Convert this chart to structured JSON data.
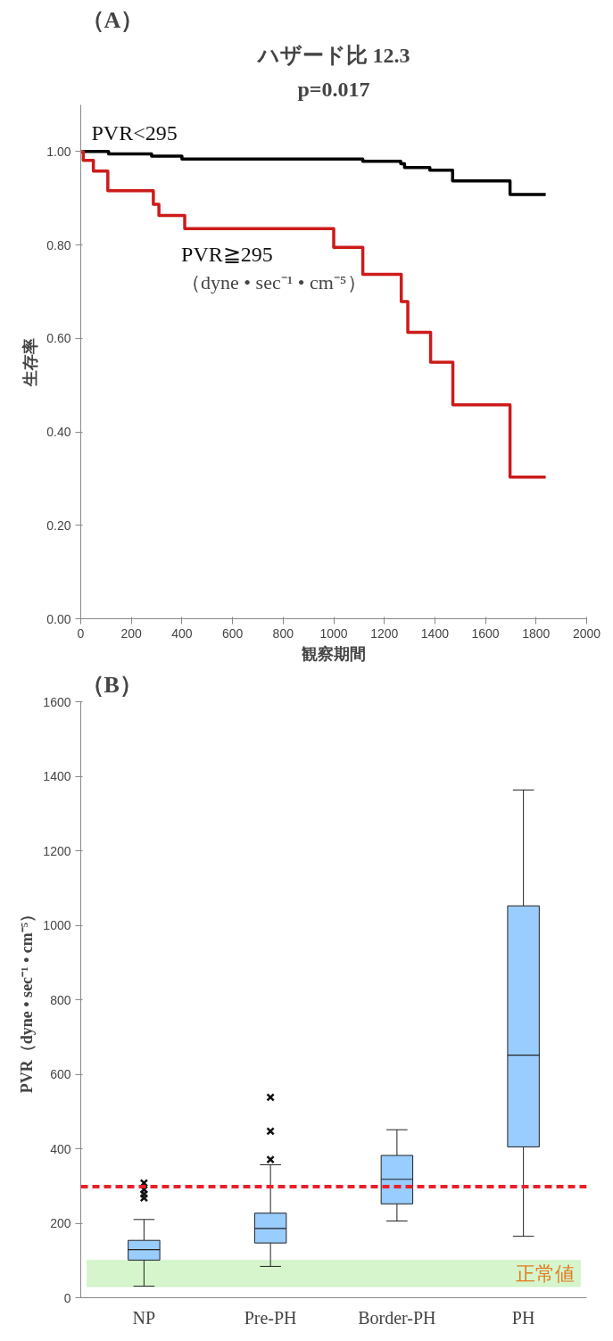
{
  "chart_data": [
    {
      "type": "step",
      "title": "（A）",
      "xlabel": "観察期間",
      "ylabel": "生存率",
      "annotations": [
        "ハザード比 12.3",
        "p=0.017",
        "（dyne • sec⁻¹ • cm⁻⁵）"
      ],
      "series": [
        {
          "name": "PVR<295",
          "color": "#000000",
          "x": [
            0,
            110,
            280,
            400,
            1115,
            1265,
            1280,
            1380,
            1470,
            1697,
            1838
          ],
          "values": [
            1.0,
            0.995,
            0.99,
            0.984,
            0.979,
            0.974,
            0.966,
            0.96,
            0.937,
            0.908,
            0.908
          ]
        },
        {
          "name": "PVR≧295",
          "color": "#cc1b1b",
          "x": [
            0,
            10,
            50,
            107,
            287,
            309,
            411,
            1000,
            1115,
            1267,
            1293,
            1383,
            1471,
            1697,
            1838
          ],
          "values": [
            1.0,
            0.981,
            0.958,
            0.916,
            0.887,
            0.863,
            0.835,
            0.795,
            0.737,
            0.679,
            0.613,
            0.549,
            0.458,
            0.303,
            0.303
          ]
        }
      ],
      "xlim": [
        0,
        2000
      ],
      "xticks": [
        0,
        200,
        400,
        600,
        800,
        1000,
        1200,
        1400,
        1600,
        1800,
        2000
      ],
      "ylim": [
        0,
        1.1
      ],
      "yticks": [
        {
          "value": 0,
          "label": "0.00"
        },
        {
          "value": 0.2,
          "label": "0.20"
        },
        {
          "value": 0.4,
          "label": "0.40"
        },
        {
          "value": 0.6,
          "label": "0.60"
        },
        {
          "value": 0.8,
          "label": "0.80"
        },
        {
          "value": 1.0,
          "label": "1.00"
        }
      ],
      "line_style": "solid",
      "marker": "none",
      "grid": false
    },
    {
      "type": "box",
      "title": "（B）",
      "ylabel": "PVR（dyne • sec⁻¹ • cm⁻⁵）",
      "categories": [
        "NP",
        "Pre-PH",
        "Border-PH",
        "PH"
      ],
      "series": [
        {
          "color": "#99ccff",
          "boxes": [
            {
              "low": 31,
              "q1": 101,
              "median": 129,
              "q3": 154,
              "high": 210,
              "outliers": [
                268,
                278,
                290,
                308
              ]
            },
            {
              "low": 84,
              "q1": 147,
              "median": 186,
              "q3": 227,
              "high": 357,
              "outliers": [
                371,
                447,
                538
              ]
            },
            {
              "low": 206,
              "q1": 252,
              "median": 318,
              "q3": 382,
              "high": 451
            },
            {
              "low": 165,
              "q1": 405,
              "median": 651,
              "q3": 1052,
              "high": 1363
            }
          ]
        }
      ],
      "ylim": [
        0,
        1600
      ],
      "yticks": [
        0,
        200,
        400,
        600,
        800,
        1000,
        1200,
        1400,
        1600
      ],
      "ref_lines": [
        {
          "axis": "y",
          "value": 298,
          "color": "#e8202a",
          "line_style": "dashed"
        }
      ],
      "bands": [
        {
          "axis": "y",
          "from": 30,
          "to": 100,
          "label": "正常値",
          "color": "#d6f5cc"
        }
      ],
      "marker": "cross",
      "grid": false
    }
  ]
}
